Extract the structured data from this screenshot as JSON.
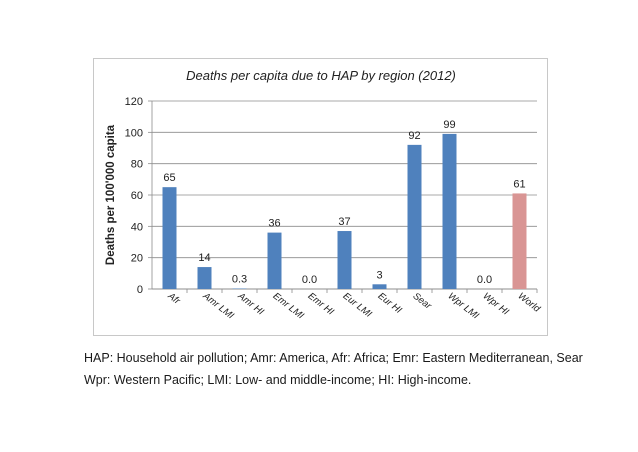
{
  "chart_data": {
    "type": "bar",
    "title": "Deaths per capita due to HAP by region (2012)",
    "xlabel": "",
    "ylabel": "Deaths per 100'000 capita",
    "ylim": [
      0,
      120
    ],
    "yticks": [
      0,
      20,
      40,
      60,
      80,
      100,
      120
    ],
    "grid": true,
    "categories": [
      "Afr",
      "Amr LMI",
      "Amr HI",
      "Emr LMI",
      "Emr HI",
      "Eur LMI",
      "Eur HI",
      "Sear",
      "Wpr LMI",
      "Wpr HI",
      "World"
    ],
    "values": [
      65,
      14,
      0.3,
      36,
      0.0,
      37,
      3,
      92,
      99,
      0.0,
      61
    ],
    "data_labels": [
      "65",
      "14",
      "0.3",
      "36",
      "0.0",
      "37",
      "3",
      "92",
      "99",
      "0.0",
      "61"
    ],
    "colors": {
      "bar": "#4f81bd",
      "highlight": "#d99594",
      "grid": "#8c8c8c"
    },
    "highlight_category": "World"
  },
  "caption": {
    "line1": "HAP: Household air pollution; Amr: America, Afr: Africa; Emr: Eastern Mediterranean, Sear",
    "line2": "Wpr: Western Pacific; LMI: Low- and middle-income; HI: High-income."
  }
}
